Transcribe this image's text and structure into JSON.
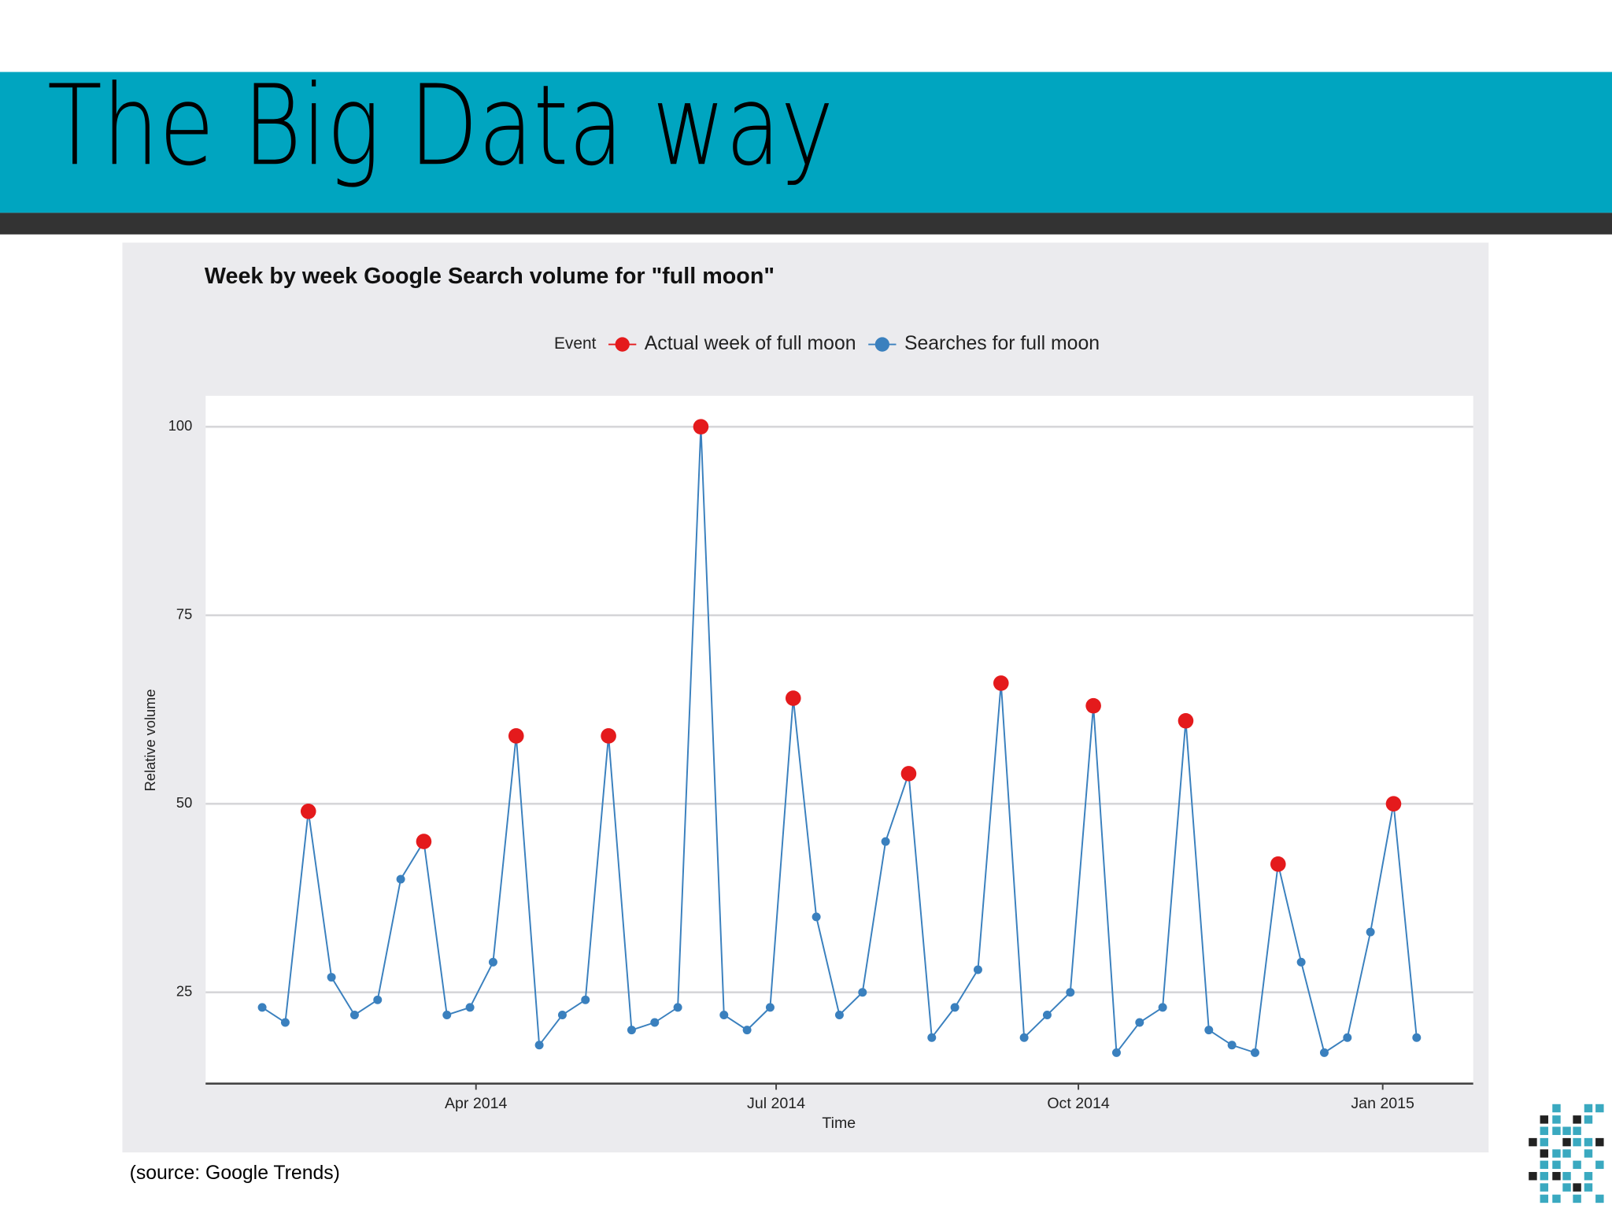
{
  "title": "The Big Data way",
  "source": "(source: Google Trends)",
  "chart_data": {
    "type": "line",
    "title": "Week by week Google Search volume for \"full moon\"",
    "legend_title": "Event",
    "x_label": "Time",
    "y_label": "Relative volume",
    "x": [
      0,
      1,
      2,
      3,
      4,
      5,
      6,
      7,
      8,
      9,
      10,
      11,
      12,
      13,
      14,
      15,
      16,
      17,
      18,
      19,
      20,
      21,
      22,
      23,
      24,
      25,
      26,
      27,
      28,
      29,
      30,
      31,
      32,
      33,
      34,
      35,
      36,
      37,
      38,
      39,
      40,
      41,
      42,
      43,
      44,
      45,
      46,
      47,
      48,
      49,
      50
    ],
    "series": [
      {
        "name": "Actual week of full moon",
        "color": "#e41a1c",
        "marker_only": true,
        "values": [
          null,
          null,
          49,
          null,
          null,
          null,
          null,
          45,
          null,
          null,
          null,
          59,
          null,
          null,
          null,
          59,
          null,
          null,
          null,
          100,
          null,
          null,
          null,
          64,
          null,
          null,
          null,
          null,
          54,
          null,
          null,
          null,
          66,
          null,
          null,
          null,
          63,
          null,
          null,
          null,
          61,
          null,
          null,
          null,
          42,
          null,
          null,
          null,
          null,
          50,
          null
        ]
      },
      {
        "name": "Searches for full moon",
        "color": "#3a80be",
        "values": [
          23,
          21,
          49,
          27,
          22,
          24,
          40,
          45,
          22,
          23,
          29,
          59,
          18,
          22,
          24,
          59,
          20,
          21,
          23,
          100,
          22,
          20,
          23,
          64,
          35,
          22,
          25,
          45,
          54,
          19,
          23,
          28,
          66,
          19,
          22,
          25,
          63,
          17,
          21,
          23,
          61,
          20,
          18,
          17,
          42,
          29,
          17,
          19,
          33,
          50,
          19
        ]
      }
    ],
    "xlim": [
      -2.45,
      52.45
    ],
    "xticks": [
      {
        "value": 9.26,
        "label": "Apr 2014"
      },
      {
        "value": 22.26,
        "label": "Jul 2014"
      },
      {
        "value": 35.35,
        "label": "Oct 2014"
      },
      {
        "value": 48.53,
        "label": "Jan 2015"
      }
    ],
    "ylim": [
      12.9,
      104.1
    ],
    "yticks": [
      25,
      50,
      75,
      100
    ],
    "grid": true,
    "legend": "top"
  }
}
